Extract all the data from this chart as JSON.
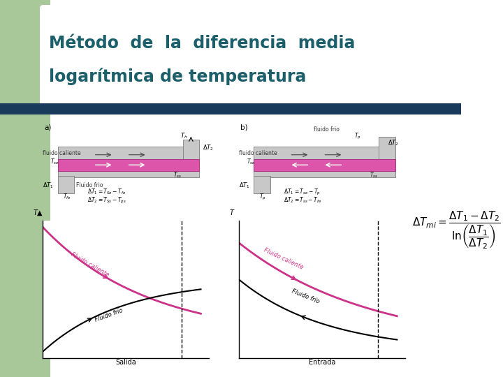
{
  "title_line1": "Método  de  la  diferencia  media",
  "title_line2": "logarítmica de temperatura",
  "title_color": "#1a5f6a",
  "bg_color": "#ffffff",
  "green_rect_color": "#a8c89a",
  "blue_bar_color": "#1a3a5c",
  "title_fontsize": 17,
  "formula": "\\Delta T_{mi} = \\frac{\\Delta T_1 - \\Delta T_2}{\\ln\\left(\\frac{\\Delta T_1}{\\Delta T_2}\\right)}"
}
